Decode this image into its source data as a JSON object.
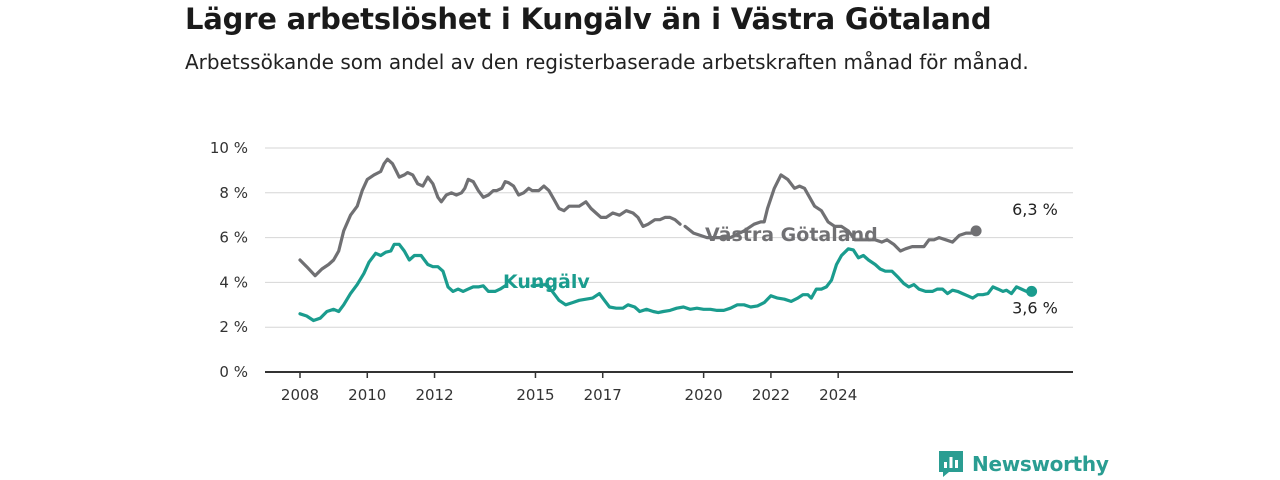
{
  "header": {
    "title": "Lägre arbetslöshet i Kungälv än i Västra Götaland",
    "subtitle": "Arbetssökande som andel av den registerbaserade arbetskraften månad för månad."
  },
  "brand": {
    "name": "Newsworthy",
    "icon": "newsworthy-logo-icon",
    "color": "#2a9d92"
  },
  "chart_data": {
    "type": "line",
    "title": "Lägre arbetslöshet i Kungälv än i Västra Götaland",
    "subtitle": "Arbetssökande som andel av den registerbaserade arbetskraften månad för månad.",
    "x_tick_labels": [
      "2008",
      "2010",
      "2012",
      "2015",
      "2017",
      "2020",
      "2022",
      "2024"
    ],
    "y_tick_labels": [
      "0 %",
      "2 %",
      "4 %",
      "6 %",
      "8 %",
      "10 %"
    ],
    "ylim": [
      0,
      10
    ],
    "grid": true,
    "series": [
      {
        "name": "Västra Götaland",
        "color": "#707073",
        "end_label": "6,3 %",
        "points": [
          [
            2008.0,
            5.0
          ],
          [
            2008.2,
            4.7
          ],
          [
            2008.45,
            4.3
          ],
          [
            2008.65,
            4.6
          ],
          [
            2008.85,
            4.8
          ],
          [
            2009.0,
            5.0
          ],
          [
            2009.15,
            5.4
          ],
          [
            2009.3,
            6.3
          ],
          [
            2009.5,
            7.0
          ],
          [
            2009.7,
            7.4
          ],
          [
            2009.85,
            8.1
          ],
          [
            2010.0,
            8.6
          ],
          [
            2010.2,
            8.8
          ],
          [
            2010.4,
            8.95
          ],
          [
            2010.5,
            9.3
          ],
          [
            2010.6,
            9.5
          ],
          [
            2010.75,
            9.3
          ],
          [
            2010.85,
            9.0
          ],
          [
            2010.95,
            8.7
          ],
          [
            2011.1,
            8.8
          ],
          [
            2011.2,
            8.9
          ],
          [
            2011.35,
            8.8
          ],
          [
            2011.5,
            8.4
          ],
          [
            2011.65,
            8.3
          ],
          [
            2011.8,
            8.7
          ],
          [
            2011.95,
            8.4
          ],
          [
            2012.1,
            7.8
          ],
          [
            2012.2,
            7.6
          ],
          [
            2012.35,
            7.9
          ],
          [
            2012.5,
            8.0
          ],
          [
            2012.65,
            7.9
          ],
          [
            2012.8,
            8.0
          ],
          [
            2012.9,
            8.2
          ],
          [
            2013.0,
            8.6
          ],
          [
            2013.15,
            8.5
          ],
          [
            2013.3,
            8.1
          ],
          [
            2013.45,
            7.8
          ],
          [
            2013.6,
            7.9
          ],
          [
            2013.75,
            8.1
          ],
          [
            2013.85,
            8.1
          ],
          [
            2014.0,
            8.2
          ],
          [
            2014.1,
            8.5
          ],
          [
            2014.2,
            8.45
          ],
          [
            2014.35,
            8.3
          ],
          [
            2014.5,
            7.9
          ],
          [
            2014.65,
            8.0
          ],
          [
            2014.8,
            8.2
          ],
          [
            2014.9,
            8.1
          ],
          [
            2015.1,
            8.1
          ],
          [
            2015.25,
            8.3
          ],
          [
            2015.4,
            8.1
          ],
          [
            2015.55,
            7.7
          ],
          [
            2015.7,
            7.3
          ],
          [
            2015.85,
            7.2
          ],
          [
            2016.0,
            7.4
          ],
          [
            2016.15,
            7.4
          ],
          [
            2016.3,
            7.4
          ],
          [
            2016.5,
            7.6
          ],
          [
            2016.65,
            7.3
          ],
          [
            2016.8,
            7.1
          ],
          [
            2016.95,
            6.9
          ],
          [
            2017.1,
            6.9
          ],
          [
            2017.3,
            7.1
          ],
          [
            2017.5,
            7.0
          ],
          [
            2017.7,
            7.2
          ],
          [
            2017.9,
            7.1
          ],
          [
            2018.05,
            6.9
          ],
          [
            2018.2,
            6.5
          ],
          [
            2018.35,
            6.6
          ],
          [
            2018.55,
            6.8
          ],
          [
            2018.7,
            6.8
          ],
          [
            2018.85,
            6.9
          ],
          [
            2019.0,
            6.9
          ],
          [
            2019.15,
            6.8
          ],
          [
            2019.3,
            6.6
          ],
          [
            2019.35,
            null
          ],
          [
            2019.45,
            6.5
          ],
          [
            2019.7,
            6.2
          ],
          [
            2019.9,
            6.1
          ],
          [
            2020.1,
            6.0
          ],
          [
            2020.4,
            6.0
          ],
          [
            2020.8,
            6.0
          ],
          [
            2021.2,
            6.3
          ],
          [
            2021.5,
            6.6
          ],
          [
            2021.7,
            6.7
          ],
          [
            2021.8,
            6.7
          ],
          [
            2021.9,
            7.3
          ],
          [
            2022.1,
            8.2
          ],
          [
            2022.3,
            8.8
          ],
          [
            2022.5,
            8.6
          ],
          [
            2022.7,
            8.2
          ],
          [
            2022.85,
            8.3
          ],
          [
            2023.0,
            8.2
          ],
          [
            2023.15,
            7.8
          ],
          [
            2023.3,
            7.4
          ],
          [
            2023.5,
            7.2
          ],
          [
            2023.7,
            6.7
          ],
          [
            2023.9,
            6.5
          ],
          [
            2024.1,
            6.5
          ],
          [
            2024.3,
            6.3
          ],
          [
            2024.5,
            5.9
          ],
          [
            2024.7,
            5.9
          ],
          [
            2024.9,
            5.9
          ],
          [
            2025.1,
            5.9
          ],
          [
            2025.3,
            5.8
          ],
          [
            2025.45,
            5.9
          ],
          [
            2025.65,
            5.7
          ],
          [
            2025.85,
            5.4
          ],
          [
            2026.0,
            5.5
          ],
          [
            2026.2,
            5.6
          ],
          [
            2026.4,
            5.6
          ],
          [
            2026.55,
            5.6
          ],
          [
            2026.7,
            5.9
          ],
          [
            2026.85,
            5.9
          ],
          [
            2027.0,
            6.0
          ],
          [
            2027.2,
            5.9
          ],
          [
            2027.4,
            5.8
          ],
          [
            2027.6,
            6.1
          ],
          [
            2027.8,
            6.2
          ],
          [
            2027.95,
            6.2
          ],
          [
            2028.1,
            6.3
          ]
        ]
      },
      {
        "name": "Kungälv",
        "color": "#1a9c8e",
        "end_label": "3,6 %",
        "points": [
          [
            2008.0,
            2.6
          ],
          [
            2008.2,
            2.5
          ],
          [
            2008.4,
            2.3
          ],
          [
            2008.6,
            2.4
          ],
          [
            2008.8,
            2.7
          ],
          [
            2009.0,
            2.8
          ],
          [
            2009.15,
            2.7
          ],
          [
            2009.3,
            3.0
          ],
          [
            2009.5,
            3.5
          ],
          [
            2009.7,
            3.9
          ],
          [
            2009.9,
            4.4
          ],
          [
            2010.05,
            4.9
          ],
          [
            2010.25,
            5.3
          ],
          [
            2010.4,
            5.2
          ],
          [
            2010.55,
            5.35
          ],
          [
            2010.7,
            5.4
          ],
          [
            2010.8,
            5.7
          ],
          [
            2010.95,
            5.7
          ],
          [
            2011.1,
            5.4
          ],
          [
            2011.25,
            5.0
          ],
          [
            2011.4,
            5.2
          ],
          [
            2011.6,
            5.2
          ],
          [
            2011.8,
            4.8
          ],
          [
            2011.95,
            4.7
          ],
          [
            2012.1,
            4.7
          ],
          [
            2012.25,
            4.5
          ],
          [
            2012.4,
            3.8
          ],
          [
            2012.55,
            3.6
          ],
          [
            2012.7,
            3.7
          ],
          [
            2012.85,
            3.6
          ],
          [
            2013.0,
            3.7
          ],
          [
            2013.15,
            3.8
          ],
          [
            2013.3,
            3.8
          ],
          [
            2013.45,
            3.85
          ],
          [
            2013.6,
            3.6
          ],
          [
            2013.8,
            3.6
          ],
          [
            2013.95,
            3.7
          ],
          [
            2014.1,
            3.85
          ],
          [
            2014.15,
            null
          ],
          [
            2014.9,
            3.85
          ],
          [
            2015.3,
            3.9
          ],
          [
            2015.5,
            3.6
          ],
          [
            2015.7,
            3.2
          ],
          [
            2015.9,
            3.0
          ],
          [
            2016.1,
            3.1
          ],
          [
            2016.3,
            3.2
          ],
          [
            2016.5,
            3.25
          ],
          [
            2016.7,
            3.3
          ],
          [
            2016.9,
            3.5
          ],
          [
            2017.05,
            3.2
          ],
          [
            2017.2,
            2.9
          ],
          [
            2017.4,
            2.85
          ],
          [
            2017.6,
            2.85
          ],
          [
            2017.75,
            3.0
          ],
          [
            2017.95,
            2.9
          ],
          [
            2018.1,
            2.7
          ],
          [
            2018.3,
            2.8
          ],
          [
            2018.5,
            2.7
          ],
          [
            2018.65,
            2.65
          ],
          [
            2018.8,
            2.7
          ],
          [
            2019.0,
            2.75
          ],
          [
            2019.2,
            2.85
          ],
          [
            2019.4,
            2.9
          ],
          [
            2019.6,
            2.8
          ],
          [
            2019.8,
            2.85
          ],
          [
            2020.0,
            2.8
          ],
          [
            2020.2,
            2.8
          ],
          [
            2020.4,
            2.75
          ],
          [
            2020.6,
            2.75
          ],
          [
            2020.8,
            2.85
          ],
          [
            2021.0,
            3.0
          ],
          [
            2021.2,
            3.0
          ],
          [
            2021.4,
            2.9
          ],
          [
            2021.6,
            2.95
          ],
          [
            2021.8,
            3.1
          ],
          [
            2022.0,
            3.4
          ],
          [
            2022.2,
            3.3
          ],
          [
            2022.4,
            3.25
          ],
          [
            2022.6,
            3.15
          ],
          [
            2022.8,
            3.3
          ],
          [
            2022.95,
            3.45
          ],
          [
            2023.1,
            3.45
          ],
          [
            2023.2,
            3.3
          ],
          [
            2023.35,
            3.7
          ],
          [
            2023.5,
            3.7
          ],
          [
            2023.65,
            3.8
          ],
          [
            2023.8,
            4.1
          ],
          [
            2023.95,
            4.8
          ],
          [
            2024.1,
            5.2
          ],
          [
            2024.3,
            5.5
          ],
          [
            2024.45,
            5.45
          ],
          [
            2024.6,
            5.1
          ],
          [
            2024.75,
            5.2
          ],
          [
            2024.9,
            5.0
          ],
          [
            2025.1,
            4.8
          ],
          [
            2025.25,
            4.6
          ],
          [
            2025.4,
            4.5
          ],
          [
            2025.6,
            4.5
          ],
          [
            2025.8,
            4.2
          ],
          [
            2025.95,
            3.95
          ],
          [
            2026.1,
            3.8
          ],
          [
            2026.25,
            3.9
          ],
          [
            2026.4,
            3.7
          ],
          [
            2026.6,
            3.6
          ],
          [
            2026.8,
            3.6
          ],
          [
            2026.95,
            3.7
          ],
          [
            2027.1,
            3.7
          ],
          [
            2027.25,
            3.5
          ],
          [
            2027.4,
            3.65
          ],
          [
            2027.55,
            3.6
          ],
          [
            2027.7,
            3.5
          ],
          [
            2027.85,
            3.4
          ],
          [
            2028.0,
            3.3
          ],
          [
            2028.15,
            3.45
          ],
          [
            2028.3,
            3.45
          ],
          [
            2028.45,
            3.5
          ],
          [
            2028.6,
            3.8
          ],
          [
            2028.75,
            3.7
          ],
          [
            2028.9,
            3.6
          ],
          [
            2029.0,
            3.65
          ],
          [
            2029.15,
            3.5
          ],
          [
            2029.3,
            3.8
          ],
          [
            2029.45,
            3.7
          ],
          [
            2029.6,
            3.6
          ],
          [
            2029.75,
            3.6
          ]
        ]
      }
    ]
  }
}
